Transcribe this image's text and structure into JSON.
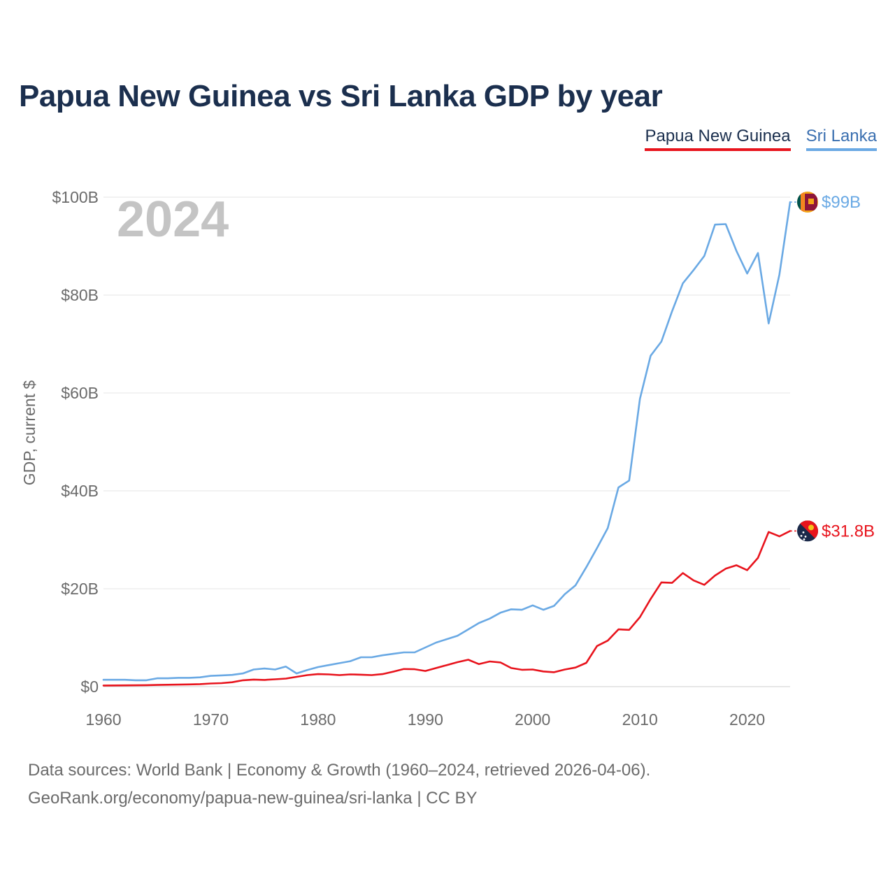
{
  "title": "Papua New Guinea vs Sri Lanka GDP by year",
  "legend": [
    {
      "name": "Papua New Guinea",
      "color": "#e8141d"
    },
    {
      "name": "Sri Lanka",
      "color": "#6aa9e4"
    }
  ],
  "footer": {
    "line1": "Data sources: World Bank | Economy & Growth (1960–2024, retrieved 2026-04-06).",
    "line2": "GeoRank.org/economy/papua-new-guinea/sri-lanka | CC BY"
  },
  "chart_data": {
    "type": "line",
    "year_label": "2024",
    "ylabel": "GDP, current $",
    "ylim": [
      0,
      100
    ],
    "xlim": [
      1960,
      2024
    ],
    "y_ticks": [
      {
        "value": 0,
        "label": "$0"
      },
      {
        "value": 20,
        "label": "$20B"
      },
      {
        "value": 40,
        "label": "$40B"
      },
      {
        "value": 60,
        "label": "$60B"
      },
      {
        "value": 80,
        "label": "$80B"
      },
      {
        "value": 100,
        "label": "$100B"
      }
    ],
    "x_ticks": [
      1960,
      1970,
      1980,
      1990,
      2000,
      2010,
      2020
    ],
    "series": [
      {
        "name": "Sri Lanka",
        "color": "#6aa9e4",
        "end_label": "$99B",
        "end_marker": "sri-lanka-flag-icon",
        "x": [
          1960,
          1961,
          1962,
          1963,
          1964,
          1965,
          1966,
          1967,
          1968,
          1969,
          1970,
          1971,
          1972,
          1973,
          1974,
          1975,
          1976,
          1977,
          1978,
          1979,
          1980,
          1981,
          1982,
          1983,
          1984,
          1985,
          1986,
          1987,
          1988,
          1989,
          1990,
          1991,
          1992,
          1993,
          1994,
          1995,
          1996,
          1997,
          1998,
          1999,
          2000,
          2001,
          2002,
          2003,
          2004,
          2005,
          2006,
          2007,
          2008,
          2009,
          2010,
          2011,
          2012,
          2013,
          2014,
          2015,
          2016,
          2017,
          2018,
          2019,
          2020,
          2021,
          2022,
          2023,
          2024
        ],
        "values": [
          1.4,
          1.4,
          1.4,
          1.3,
          1.3,
          1.7,
          1.7,
          1.8,
          1.8,
          1.9,
          2.2,
          2.3,
          2.4,
          2.7,
          3.5,
          3.7,
          3.5,
          4.1,
          2.7,
          3.4,
          4.0,
          4.4,
          4.8,
          5.2,
          6.0,
          6.0,
          6.4,
          6.7,
          7.0,
          7.0,
          8.0,
          9.0,
          9.7,
          10.4,
          11.7,
          13.0,
          13.9,
          15.1,
          15.8,
          15.7,
          16.6,
          15.7,
          16.5,
          18.9,
          20.7,
          24.4,
          28.3,
          32.4,
          40.7,
          42.1,
          58.8,
          67.6,
          70.5,
          76.7,
          82.4,
          85.1,
          88.0,
          94.4,
          94.5,
          89.0,
          84.4,
          88.6,
          74.2,
          84.2,
          99.0
        ]
      },
      {
        "name": "Papua New Guinea",
        "color": "#e8141d",
        "end_label": "$31.8B",
        "end_marker": "papua-new-guinea-flag-icon",
        "x": [
          1960,
          1961,
          1962,
          1963,
          1964,
          1965,
          1966,
          1967,
          1968,
          1969,
          1970,
          1971,
          1972,
          1973,
          1974,
          1975,
          1976,
          1977,
          1978,
          1979,
          1980,
          1981,
          1982,
          1983,
          1984,
          1985,
          1986,
          1987,
          1988,
          1989,
          1990,
          1991,
          1992,
          1993,
          1994,
          1995,
          1996,
          1997,
          1998,
          1999,
          2000,
          2001,
          2002,
          2003,
          2004,
          2005,
          2006,
          2007,
          2008,
          2009,
          2010,
          2011,
          2012,
          2013,
          2014,
          2015,
          2016,
          2017,
          2018,
          2019,
          2020,
          2021,
          2022,
          2023,
          2024
        ],
        "values": [
          0.23,
          0.24,
          0.26,
          0.27,
          0.3,
          0.34,
          0.38,
          0.42,
          0.46,
          0.52,
          0.65,
          0.72,
          0.9,
          1.3,
          1.45,
          1.37,
          1.5,
          1.65,
          2.0,
          2.35,
          2.55,
          2.5,
          2.35,
          2.5,
          2.45,
          2.35,
          2.55,
          3.05,
          3.6,
          3.55,
          3.2,
          3.8,
          4.4,
          5.0,
          5.5,
          4.6,
          5.15,
          4.95,
          3.8,
          3.45,
          3.5,
          3.1,
          2.95,
          3.5,
          3.9,
          4.85,
          8.3,
          9.4,
          11.7,
          11.6,
          14.2,
          17.9,
          21.3,
          21.2,
          23.2,
          21.7,
          20.8,
          22.7,
          24.1,
          24.8,
          23.8,
          26.3,
          31.6,
          30.7,
          31.8
        ]
      }
    ]
  }
}
